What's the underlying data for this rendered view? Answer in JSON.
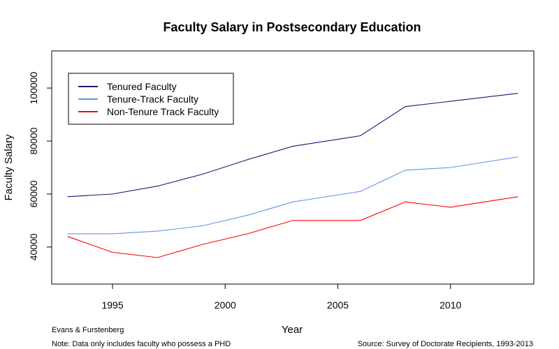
{
  "chart_data": {
    "type": "line",
    "title": "Faculty Salary in Postsecondary Education",
    "xlabel": "Year",
    "ylabel": "Faculty Salary",
    "xlim": [
      1992.3,
      2013.7
    ],
    "ylim": [
      26000,
      114000
    ],
    "x_ticks": [
      1995,
      2000,
      2005,
      2010
    ],
    "y_ticks": [
      40000,
      60000,
      80000,
      100000
    ],
    "x": [
      1993,
      1995,
      1997,
      1999,
      2001,
      2003,
      2006,
      2008,
      2010,
      2013
    ],
    "series": [
      {
        "name": "Tenured Faculty",
        "color": "#191970",
        "values": [
          59000,
          60000,
          63000,
          67500,
          73000,
          78000,
          82000,
          93000,
          95000,
          98000
        ]
      },
      {
        "name": "Tenure-Track Faculty",
        "color": "#6495ED",
        "values": [
          45000,
          45000,
          46000,
          48000,
          52000,
          57000,
          61000,
          69000,
          70000,
          74000
        ]
      },
      {
        "name": "Non-Tenure Track Faculty",
        "color": "#FF0000",
        "values": [
          44000,
          38000,
          36000,
          41000,
          45000,
          50000,
          50000,
          57000,
          55000,
          59000
        ]
      }
    ],
    "legend_position": "top-left",
    "grid": false
  },
  "footer": {
    "author": "Evans & Furstenberg",
    "note": "Note: Data only includes faculty who possess a PHD",
    "source": "Source: Survey of Doctorate Recipients, 1993-2013"
  }
}
